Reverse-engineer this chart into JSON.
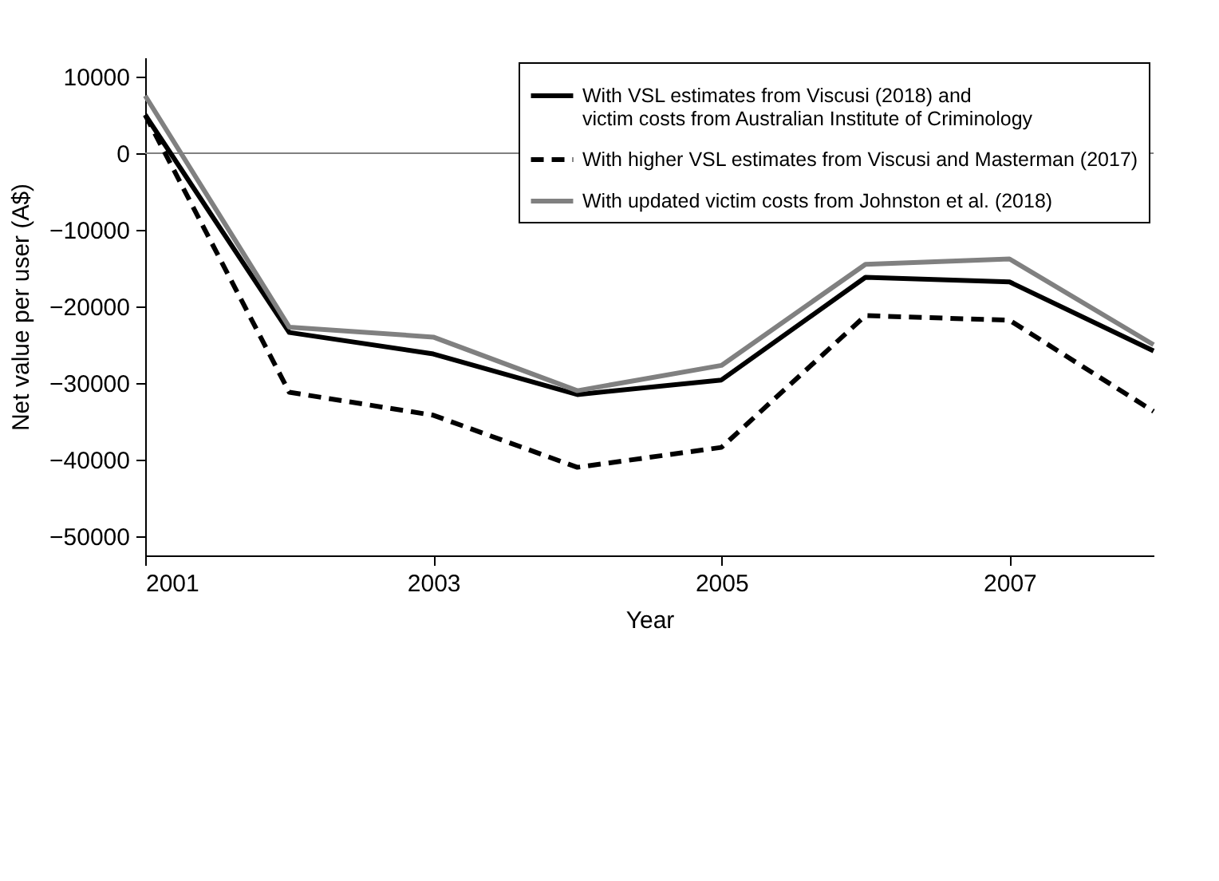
{
  "chart_data": {
    "type": "line",
    "xlabel": "Year",
    "ylabel": "Net value per user (A$)",
    "x": [
      2001,
      2002,
      2003,
      2004,
      2005,
      2006,
      2007,
      2008
    ],
    "series": [
      {
        "name": "With VSL estimates from Viscusi (2018) and\nvictim costs from Australian Institute of Criminology",
        "color": "#000000",
        "line_style": "solid",
        "values": [
          5000,
          -23400,
          -26200,
          -31500,
          -29600,
          -16200,
          -16800,
          -25800
        ]
      },
      {
        "name": "With higher VSL estimates from Viscusi and Masterman (2017)",
        "color": "#000000",
        "line_style": "dashed",
        "values": [
          5000,
          -31200,
          -34200,
          -41000,
          -38400,
          -21200,
          -21800,
          -33700
        ]
      },
      {
        "name": "With updated victim costs from Johnston et al. (2018)",
        "color": "#808080",
        "line_style": "solid",
        "values": [
          7500,
          -22700,
          -24000,
          -31000,
          -27700,
          -14500,
          -13800,
          -25000
        ]
      }
    ],
    "xlim": [
      2001,
      2008
    ],
    "xticks": [
      2001,
      2003,
      2005,
      2007
    ],
    "ylim": [
      -52500,
      12500
    ],
    "yticks": [
      -50000,
      -40000,
      -30000,
      -20000,
      -10000,
      0,
      10000
    ],
    "ref_lines": [
      {
        "axis": "y",
        "value": 0,
        "color": "#808080"
      }
    ],
    "grid": false,
    "legend": "top right",
    "marker": "none"
  }
}
